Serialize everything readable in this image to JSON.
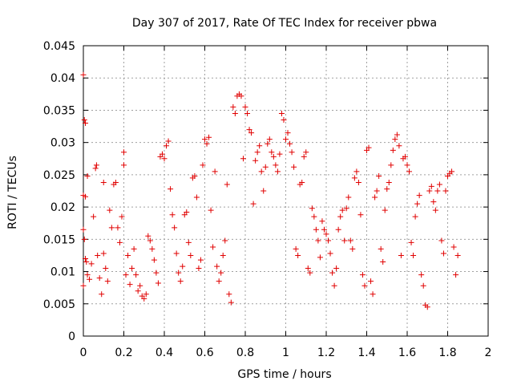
{
  "chart_data": {
    "type": "scatter",
    "title": "Day 307 of 2017, Rate Of TEC Index for receiver pbwa",
    "xlabel": "GPS time / hours",
    "ylabel": "ROTI / TECUs",
    "xlim": [
      0,
      2
    ],
    "ylim": [
      0,
      0.045
    ],
    "xticks": [
      "0",
      "0.2",
      "0.4",
      "0.6",
      "0.8",
      "1",
      "1.2",
      "1.4",
      "1.6",
      "1.8",
      "2"
    ],
    "yticks": [
      "0",
      "0.005",
      "0.01",
      "0.015",
      "0.02",
      "0.025",
      "0.03",
      "0.035",
      "0.04",
      "0.045"
    ],
    "grid": true,
    "legend": "none",
    "marker": "plus",
    "color": "#e00000",
    "series": [
      {
        "points": [
          [
            0.0,
            0.0405
          ],
          [
            0.005,
            0.0335
          ],
          [
            0.01,
            0.033
          ],
          [
            0.0,
            0.0218
          ],
          [
            0.01,
            0.0216
          ],
          [
            0.02,
            0.0248
          ],
          [
            0.0,
            0.0165
          ],
          [
            0.005,
            0.015
          ],
          [
            0.01,
            0.012
          ],
          [
            0.015,
            0.0115
          ],
          [
            0.02,
            0.0095
          ],
          [
            0.03,
            0.0088
          ],
          [
            0.0,
            0.0078
          ],
          [
            0.04,
            0.0112
          ],
          [
            0.05,
            0.0185
          ],
          [
            0.06,
            0.026
          ],
          [
            0.065,
            0.0265
          ],
          [
            0.07,
            0.0125
          ],
          [
            0.08,
            0.009
          ],
          [
            0.09,
            0.0065
          ],
          [
            0.1,
            0.0238
          ],
          [
            0.1,
            0.0128
          ],
          [
            0.11,
            0.0105
          ],
          [
            0.12,
            0.0085
          ],
          [
            0.13,
            0.0195
          ],
          [
            0.14,
            0.0168
          ],
          [
            0.15,
            0.0235
          ],
          [
            0.16,
            0.0238
          ],
          [
            0.17,
            0.0168
          ],
          [
            0.18,
            0.0145
          ],
          [
            0.19,
            0.0185
          ],
          [
            0.2,
            0.0285
          ],
          [
            0.2,
            0.0265
          ],
          [
            0.21,
            0.0095
          ],
          [
            0.22,
            0.0125
          ],
          [
            0.23,
            0.008
          ],
          [
            0.24,
            0.0105
          ],
          [
            0.25,
            0.0135
          ],
          [
            0.26,
            0.0095
          ],
          [
            0.27,
            0.007
          ],
          [
            0.28,
            0.0078
          ],
          [
            0.29,
            0.0062
          ],
          [
            0.3,
            0.0058
          ],
          [
            0.31,
            0.0065
          ],
          [
            0.32,
            0.0155
          ],
          [
            0.33,
            0.0148
          ],
          [
            0.34,
            0.0135
          ],
          [
            0.35,
            0.0118
          ],
          [
            0.36,
            0.0098
          ],
          [
            0.37,
            0.0082
          ],
          [
            0.38,
            0.0278
          ],
          [
            0.39,
            0.0282
          ],
          [
            0.4,
            0.0275
          ],
          [
            0.41,
            0.0295
          ],
          [
            0.42,
            0.0302
          ],
          [
            0.43,
            0.0228
          ],
          [
            0.44,
            0.0188
          ],
          [
            0.45,
            0.0168
          ],
          [
            0.46,
            0.0128
          ],
          [
            0.47,
            0.0098
          ],
          [
            0.48,
            0.0085
          ],
          [
            0.49,
            0.0108
          ],
          [
            0.5,
            0.0188
          ],
          [
            0.51,
            0.0192
          ],
          [
            0.52,
            0.0145
          ],
          [
            0.53,
            0.0125
          ],
          [
            0.54,
            0.0245
          ],
          [
            0.55,
            0.0248
          ],
          [
            0.56,
            0.0215
          ],
          [
            0.57,
            0.0105
          ],
          [
            0.58,
            0.0118
          ],
          [
            0.59,
            0.0265
          ],
          [
            0.6,
            0.0305
          ],
          [
            0.61,
            0.0298
          ],
          [
            0.62,
            0.0308
          ],
          [
            0.63,
            0.0195
          ],
          [
            0.64,
            0.0138
          ],
          [
            0.65,
            0.0255
          ],
          [
            0.66,
            0.0108
          ],
          [
            0.67,
            0.0085
          ],
          [
            0.68,
            0.0098
          ],
          [
            0.69,
            0.0125
          ],
          [
            0.7,
            0.0148
          ],
          [
            0.71,
            0.0235
          ],
          [
            0.72,
            0.0065
          ],
          [
            0.73,
            0.0052
          ],
          [
            0.74,
            0.0355
          ],
          [
            0.75,
            0.0345
          ],
          [
            0.76,
            0.0372
          ],
          [
            0.77,
            0.0375
          ],
          [
            0.78,
            0.0372
          ],
          [
            0.79,
            0.0275
          ],
          [
            0.8,
            0.0355
          ],
          [
            0.81,
            0.0345
          ],
          [
            0.82,
            0.032
          ],
          [
            0.83,
            0.0315
          ],
          [
            0.84,
            0.0205
          ],
          [
            0.85,
            0.0272
          ],
          [
            0.86,
            0.0285
          ],
          [
            0.87,
            0.0295
          ],
          [
            0.88,
            0.0255
          ],
          [
            0.89,
            0.0225
          ],
          [
            0.9,
            0.0262
          ],
          [
            0.91,
            0.0298
          ],
          [
            0.92,
            0.0305
          ],
          [
            0.93,
            0.0285
          ],
          [
            0.94,
            0.0278
          ],
          [
            0.95,
            0.0265
          ],
          [
            0.96,
            0.0255
          ],
          [
            0.97,
            0.0282
          ],
          [
            0.98,
            0.0345
          ],
          [
            0.99,
            0.0335
          ],
          [
            1.0,
            0.0305
          ],
          [
            1.01,
            0.0315
          ],
          [
            1.02,
            0.0298
          ],
          [
            1.03,
            0.0285
          ],
          [
            1.04,
            0.0262
          ],
          [
            1.05,
            0.0135
          ],
          [
            1.06,
            0.0125
          ],
          [
            1.07,
            0.0235
          ],
          [
            1.08,
            0.0238
          ],
          [
            1.09,
            0.0278
          ],
          [
            1.1,
            0.0285
          ],
          [
            1.11,
            0.0105
          ],
          [
            1.12,
            0.0098
          ],
          [
            1.13,
            0.0198
          ],
          [
            1.14,
            0.0185
          ],
          [
            1.15,
            0.0165
          ],
          [
            1.16,
            0.0148
          ],
          [
            1.17,
            0.0122
          ],
          [
            1.18,
            0.0178
          ],
          [
            1.19,
            0.0165
          ],
          [
            1.2,
            0.0158
          ],
          [
            1.21,
            0.0148
          ],
          [
            1.22,
            0.0128
          ],
          [
            1.23,
            0.0098
          ],
          [
            1.24,
            0.0078
          ],
          [
            1.25,
            0.0105
          ],
          [
            1.26,
            0.0165
          ],
          [
            1.27,
            0.0185
          ],
          [
            1.28,
            0.0195
          ],
          [
            1.29,
            0.0148
          ],
          [
            1.3,
            0.0198
          ],
          [
            1.31,
            0.0215
          ],
          [
            1.32,
            0.0148
          ],
          [
            1.33,
            0.0135
          ],
          [
            1.34,
            0.0245
          ],
          [
            1.35,
            0.0255
          ],
          [
            1.36,
            0.0238
          ],
          [
            1.37,
            0.0188
          ],
          [
            1.38,
            0.0095
          ],
          [
            1.39,
            0.0078
          ],
          [
            1.4,
            0.0288
          ],
          [
            1.41,
            0.0292
          ],
          [
            1.42,
            0.0085
          ],
          [
            1.43,
            0.0065
          ],
          [
            1.44,
            0.0215
          ],
          [
            1.45,
            0.0225
          ],
          [
            1.46,
            0.0248
          ],
          [
            1.47,
            0.0135
          ],
          [
            1.48,
            0.0115
          ],
          [
            1.49,
            0.0195
          ],
          [
            1.5,
            0.0228
          ],
          [
            1.51,
            0.0238
          ],
          [
            1.52,
            0.0265
          ],
          [
            1.53,
            0.0288
          ],
          [
            1.54,
            0.0305
          ],
          [
            1.55,
            0.0312
          ],
          [
            1.56,
            0.0295
          ],
          [
            1.57,
            0.0125
          ],
          [
            1.58,
            0.0275
          ],
          [
            1.59,
            0.0278
          ],
          [
            1.6,
            0.0265
          ],
          [
            1.61,
            0.0255
          ],
          [
            1.62,
            0.0145
          ],
          [
            1.63,
            0.0125
          ],
          [
            1.64,
            0.0185
          ],
          [
            1.65,
            0.0205
          ],
          [
            1.66,
            0.0218
          ],
          [
            1.67,
            0.0095
          ],
          [
            1.68,
            0.0078
          ],
          [
            1.69,
            0.0048
          ],
          [
            1.7,
            0.0045
          ],
          [
            1.71,
            0.0225
          ],
          [
            1.72,
            0.0232
          ],
          [
            1.73,
            0.0208
          ],
          [
            1.74,
            0.0195
          ],
          [
            1.75,
            0.0225
          ],
          [
            1.76,
            0.0235
          ],
          [
            1.77,
            0.0148
          ],
          [
            1.78,
            0.0128
          ],
          [
            1.79,
            0.0225
          ],
          [
            1.8,
            0.0248
          ],
          [
            1.81,
            0.0252
          ],
          [
            1.82,
            0.0255
          ],
          [
            1.83,
            0.0138
          ],
          [
            1.84,
            0.0095
          ],
          [
            1.85,
            0.0125
          ]
        ]
      }
    ]
  }
}
